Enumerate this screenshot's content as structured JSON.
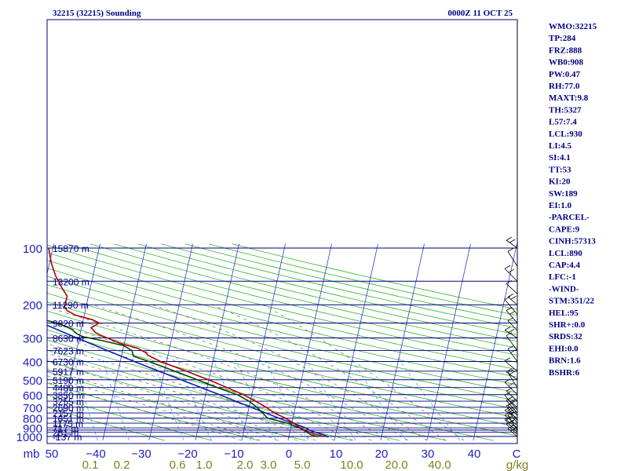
{
  "chart_data": {
    "type": "skew-t",
    "title_left": "32215 (32215) Sounding",
    "title_right": "0000Z 11 OCT 25",
    "pressure_ticks": [
      100,
      200,
      300,
      400,
      500,
      600,
      700,
      800,
      900,
      1000
    ],
    "pressure_lines": [
      100,
      150,
      200,
      250,
      300,
      350,
      400,
      450,
      500,
      550,
      600,
      650,
      700,
      750,
      800,
      850,
      900,
      925,
      950,
      1000
    ],
    "temp_ticks": [
      -50,
      -40,
      -30,
      -20,
      -10,
      0,
      10,
      20,
      30,
      40
    ],
    "temp_tick_labels": [
      "mb",
      "50",
      "−40",
      "−30",
      "−20",
      "−10",
      "0",
      "10",
      "20",
      "30",
      "40",
      "C"
    ],
    "mixing_ratio_labels": [
      "0.1",
      "0.2",
      "0.6",
      "1.0",
      "2.0",
      "3.0",
      "5.0",
      "10.0",
      "20.0",
      "40.0",
      "g/kg"
    ],
    "heights": [
      {
        "p": 100,
        "text": "15870 m"
      },
      {
        "p": 150,
        "text": "13200 m"
      },
      {
        "p": 200,
        "text": "11290 m"
      },
      {
        "p": 250,
        "text": "9820 m"
      },
      {
        "p": 300,
        "text": "8630 m"
      },
      {
        "p": 350,
        "text": "7623 m"
      },
      {
        "p": 400,
        "text": "6730 m"
      },
      {
        "p": 450,
        "text": "5917 m"
      },
      {
        "p": 500,
        "text": "5190 m"
      },
      {
        "p": 550,
        "text": "4489 m"
      },
      {
        "p": 600,
        "text": "3850 m"
      },
      {
        "p": 650,
        "text": "3255 m"
      },
      {
        "p": 700,
        "text": "2690 m"
      },
      {
        "p": 750,
        "text": "2157 m"
      },
      {
        "p": 800,
        "text": "1651 m"
      },
      {
        "p": 850,
        "text": "1175 m"
      },
      {
        "p": 900,
        "text": "717 m"
      },
      {
        "p": 950,
        "text": "281 m"
      },
      {
        "p": 1000,
        "text": "-137 m"
      }
    ],
    "temperature": [
      {
        "p": 1004,
        "t": 7.7
      },
      {
        "p": 970,
        "t": 5.3
      },
      {
        "p": 925,
        "t": 3.0
      },
      {
        "p": 900,
        "t": 2.0
      },
      {
        "p": 850,
        "t": 0.4
      },
      {
        "p": 800,
        "t": -1.6
      },
      {
        "p": 750,
        "t": -4.3
      },
      {
        "p": 700,
        "t": -6.3
      },
      {
        "p": 650,
        "t": -8.9
      },
      {
        "p": 600,
        "t": -11.8
      },
      {
        "p": 550,
        "t": -15.7
      },
      {
        "p": 500,
        "t": -20.1
      },
      {
        "p": 450,
        "t": -25.3
      },
      {
        "p": 400,
        "t": -31.3
      },
      {
        "p": 370,
        "t": -34.4
      },
      {
        "p": 360,
        "t": -34.8
      },
      {
        "p": 340,
        "t": -36.9
      },
      {
        "p": 320,
        "t": -41.0
      },
      {
        "p": 300,
        "t": -43.9
      },
      {
        "p": 290,
        "t": -45.6
      },
      {
        "p": 280,
        "t": -46.8
      },
      {
        "p": 265,
        "t": -47.9
      },
      {
        "p": 250,
        "t": -46.4
      },
      {
        "p": 240,
        "t": -48.0
      },
      {
        "p": 227,
        "t": -51.9
      },
      {
        "p": 215,
        "t": -53.9
      },
      {
        "p": 205,
        "t": -54.7
      },
      {
        "p": 180,
        "t": -54.6
      },
      {
        "p": 164,
        "t": -56.0
      },
      {
        "p": 140,
        "t": -58.1
      },
      {
        "p": 120,
        "t": -59.6
      },
      {
        "p": 100,
        "t": -60.9
      }
    ],
    "dewpoint": [
      {
        "p": 1004,
        "t": 6.3
      },
      {
        "p": 980,
        "t": 4.7
      },
      {
        "p": 930,
        "t": 3.0
      },
      {
        "p": 900,
        "t": 1.8
      },
      {
        "p": 850,
        "t": -0.9
      },
      {
        "p": 800,
        "t": -5.5
      },
      {
        "p": 750,
        "t": -6.8
      },
      {
        "p": 700,
        "t": -8.3
      },
      {
        "p": 650,
        "t": -10.3
      },
      {
        "p": 600,
        "t": -13.1
      },
      {
        "p": 550,
        "t": -17.8
      },
      {
        "p": 500,
        "t": -22.5
      },
      {
        "p": 450,
        "t": -27.8
      },
      {
        "p": 400,
        "t": -33.8
      },
      {
        "p": 375,
        "t": -37.4
      },
      {
        "p": 350,
        "t": -38.0
      },
      {
        "p": 330,
        "t": -40.0
      },
      {
        "p": 310,
        "t": -44.9
      },
      {
        "p": 295,
        "t": -49.3
      },
      {
        "p": 285,
        "t": -50.7
      },
      {
        "p": 270,
        "t": -52.0
      },
      {
        "p": 258,
        "t": -53.9
      },
      {
        "p": 250,
        "t": -55.5
      },
      {
        "p": 235,
        "t": -60.0
      },
      {
        "p": 200,
        "t": -64.7
      },
      {
        "p": 175,
        "t": -68.7
      },
      {
        "p": 162,
        "t": -72.2
      },
      {
        "p": 150,
        "t": -75.5
      },
      {
        "p": 125,
        "t": -78.5
      },
      {
        "p": 100,
        "t": -81.6
      }
    ],
    "parcel_path": [
      {
        "p": 1004,
        "t": 8.7
      },
      {
        "p": 930,
        "t": 4.3
      },
      {
        "p": 900,
        "t": 3.2
      },
      {
        "p": 850,
        "t": 0.2
      },
      {
        "p": 800,
        "t": -3.0
      },
      {
        "p": 700,
        "t": -9.6
      },
      {
        "p": 600,
        "t": -17.0
      },
      {
        "p": 500,
        "t": -26.0
      },
      {
        "p": 400,
        "t": -37.0
      },
      {
        "p": 300,
        "t": -50.5
      },
      {
        "p": 200,
        "t": -69.0
      },
      {
        "p": 150,
        "t": -80.0
      },
      {
        "p": 100,
        "t": -93.0
      }
    ],
    "wind_barbs_p": [
      1000,
      975,
      950,
      925,
      900,
      875,
      850,
      825,
      800,
      775,
      750,
      725,
      700,
      650,
      600,
      550,
      500,
      450,
      400,
      350,
      300,
      275,
      250,
      225,
      200,
      175,
      150,
      125,
      100
    ],
    "indices": [
      "WMO:32215",
      "TP:284",
      "FRZ:888",
      "WB0:908",
      "PW:0.47",
      "RH:77.0",
      "MAXT:9.8",
      "TH:5327",
      "L57:7.4",
      "LCL:930",
      "LI:4.5",
      "SI:4.1",
      "TT:53",
      "KI:20",
      "SW:189",
      "EI:1.0",
      "-PARCEL-",
      "CAPE:9",
      "CINH:57313",
      "LCL:890",
      "CAP:4.4",
      "LFC:-1",
      "-WIND-",
      "STM:351/22",
      "HEL:95",
      "SHR+:0.0",
      "SRDS:32",
      "EHI:0.0",
      "BRN:1.6",
      "BSHR:6"
    ],
    "colors": {
      "frame": "#000080",
      "isobar": "#000080",
      "isotherm": "#3838c8",
      "dry_adiabat": "#33b833",
      "moist_adiabat": "#555555",
      "mixing_ratio": "#40a8e8",
      "temperature": "#b00000",
      "dewpoint": "#004400",
      "parcel": "#1020b0",
      "pressure_label": "#2020c0",
      "mixing_label": "#808020",
      "barb": "#000000"
    }
  }
}
